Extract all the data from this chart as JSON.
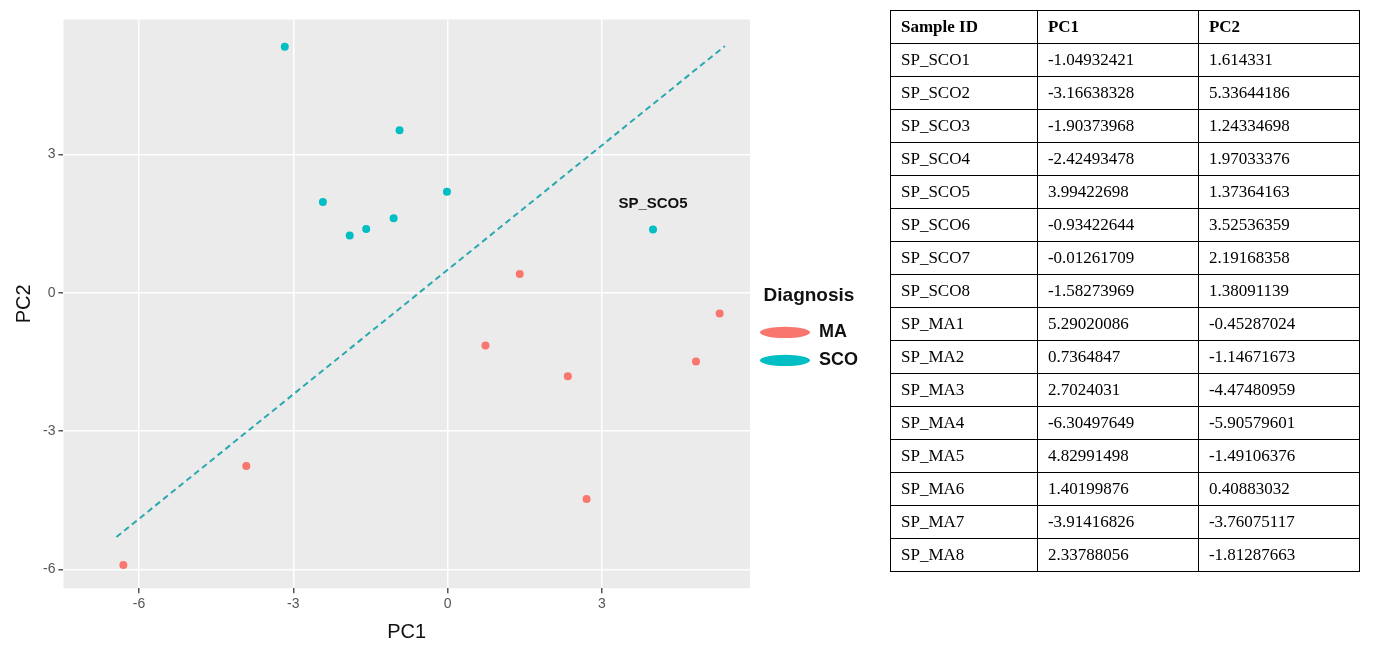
{
  "chart_data": [
    {
      "type": "scatter",
      "xlabel": "PC1",
      "ylabel": "PC2",
      "legend_title": "Diagnosis",
      "xlim": [
        -7.47,
        5.88
      ],
      "ylim": [
        -6.41,
        5.93
      ],
      "xticks": [
        -6,
        -3,
        0,
        3
      ],
      "yticks": [
        -6,
        -3,
        0,
        3
      ],
      "grid": true,
      "legend": "right",
      "marker": "circle",
      "series": [
        {
          "name": "MA",
          "color": "#f8766d",
          "x": [
            5.29020086,
            0.7364847,
            2.7024031,
            -6.30497649,
            4.82991498,
            1.40199876,
            -3.91416826,
            2.33788056
          ],
          "values": [
            -0.45287024,
            -1.14671673,
            -4.47480959,
            -5.90579601,
            -1.49106376,
            0.40883032,
            -3.76075117,
            -1.81287663
          ]
        },
        {
          "name": "SCO",
          "color": "#00bfc4",
          "x": [
            -1.04932421,
            -3.16638328,
            -1.90373968,
            -2.42493478,
            3.99422698,
            -0.93422644,
            -0.01261709,
            -1.58273969
          ],
          "values": [
            1.614331,
            5.33644186,
            1.24334698,
            1.97033376,
            1.37364163,
            3.52536359,
            2.19168358,
            1.38091139
          ]
        },
        {
          "type": "line",
          "line_style": "dashed",
          "marker": "none",
          "color": "#2aa8b0",
          "x": [
            -6.44,
            5.39
          ],
          "values": [
            -5.3,
            5.35
          ]
        }
      ],
      "annotations": [
        {
          "text": "SP_SCO5",
          "x": 3.99422698,
          "y": 1.37364163
        }
      ]
    },
    {
      "type": "other",
      "data_labels": true,
      "xlabel": "Sample ID",
      "categories": [
        "SP_SCO1",
        "SP_SCO2",
        "SP_SCO3",
        "SP_SCO4",
        "SP_SCO5",
        "SP_SCO6",
        "SP_SCO7",
        "SP_SCO8",
        "SP_MA1",
        "SP_MA2",
        "SP_MA3",
        "SP_MA4",
        "SP_MA5",
        "SP_MA6",
        "SP_MA7",
        "SP_MA8"
      ],
      "series": [
        {
          "name": "PC1",
          "values": [
            -1.04932421,
            -3.16638328,
            -1.90373968,
            -2.42493478,
            3.99422698,
            -0.93422644,
            -0.01261709,
            -1.58273969,
            5.29020086,
            0.7364847,
            2.7024031,
            -6.30497649,
            4.82991498,
            1.40199876,
            -3.91416826,
            2.33788056
          ]
        },
        {
          "name": "PC2",
          "values": [
            1.614331,
            5.33644186,
            1.24334698,
            1.97033376,
            1.37364163,
            3.52536359,
            2.19168358,
            1.38091139,
            -0.45287024,
            -1.14671673,
            -4.47480959,
            -5.90579601,
            -1.49106376,
            0.40883032,
            -3.76075117,
            -1.81287663
          ]
        }
      ]
    }
  ]
}
